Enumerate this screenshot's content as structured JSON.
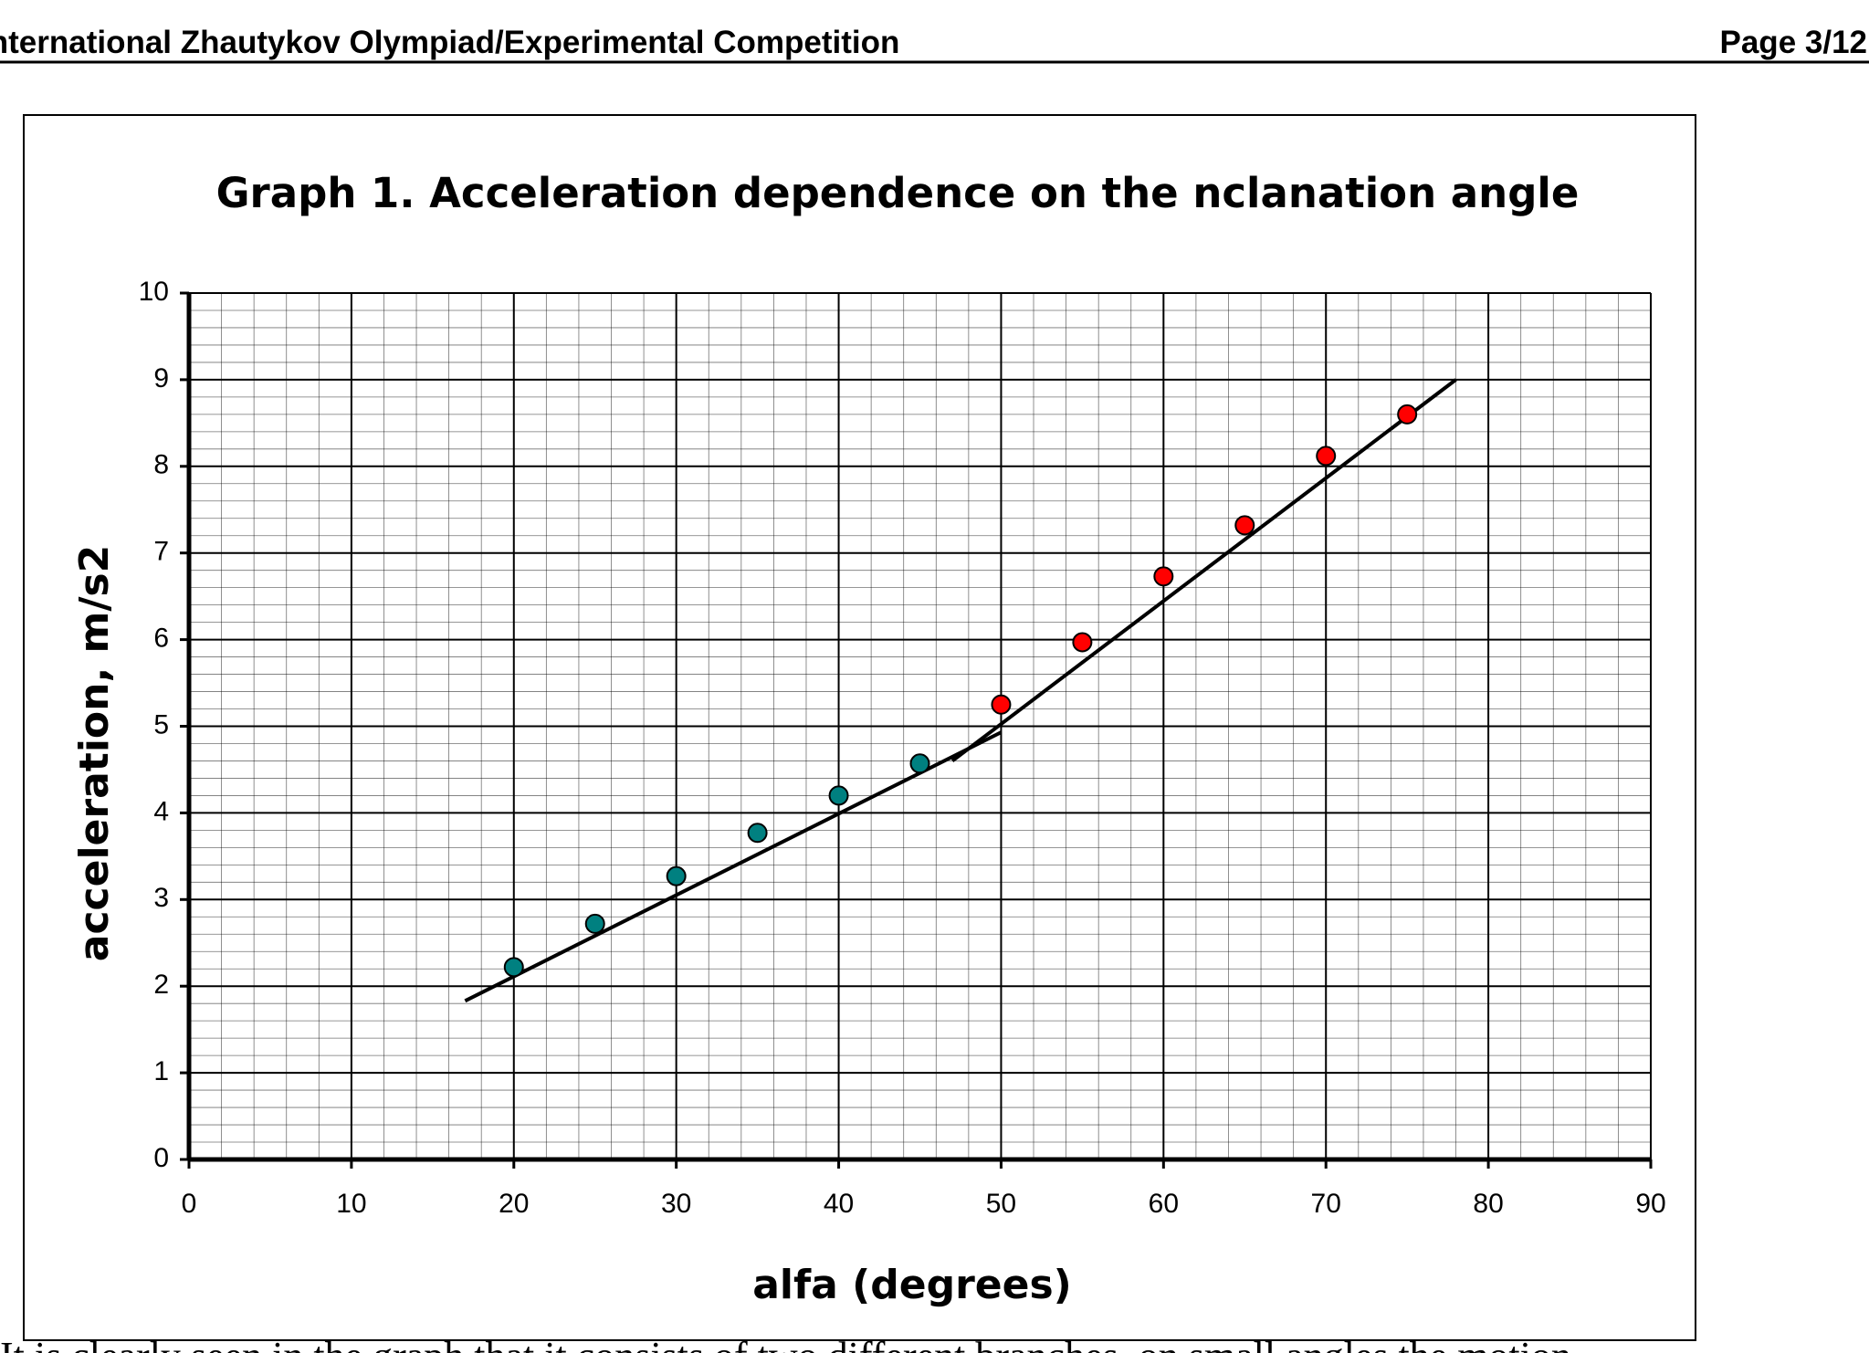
{
  "header": {
    "left": "International Zhautykov Olympiad/Experimental Competition",
    "right": "Page 3/12"
  },
  "chart_data": {
    "type": "scatter",
    "title": "Graph 1. Acceleration dependence on the nclanation angle",
    "x_label": "alfa (degrees)",
    "y_label": "acceleration, m/s2",
    "series": [
      {
        "color": "#008080",
        "x": [
          20,
          25,
          30,
          35,
          40,
          45
        ],
        "values": [
          2.22,
          2.72,
          3.27,
          3.77,
          4.2,
          4.57
        ]
      },
      {
        "color": "#ff0000",
        "x": [
          50,
          55,
          60,
          65,
          70,
          75
        ],
        "values": [
          5.25,
          5.97,
          6.73,
          7.32,
          8.12,
          8.6
        ]
      }
    ],
    "fit_lines": [
      {
        "color": "#000000",
        "x": [
          17,
          50
        ],
        "values": [
          1.83,
          4.93
        ]
      },
      {
        "color": "#000000",
        "x": [
          47,
          78
        ],
        "values": [
          4.6,
          9.0
        ]
      }
    ],
    "xlim": [
      0,
      90
    ],
    "xticks": [
      0,
      10,
      20,
      30,
      40,
      50,
      60,
      70,
      80,
      90
    ],
    "ylim": [
      0,
      10
    ],
    "yticks": [
      0,
      1,
      2,
      3,
      4,
      5,
      6,
      7,
      8,
      9,
      10
    ],
    "grid": true,
    "minor_xstep": 2,
    "minor_ystep": 0.2
  },
  "body_text": "It is clearly seen in the graph that it consists of two different branches, on small angles the motion"
}
